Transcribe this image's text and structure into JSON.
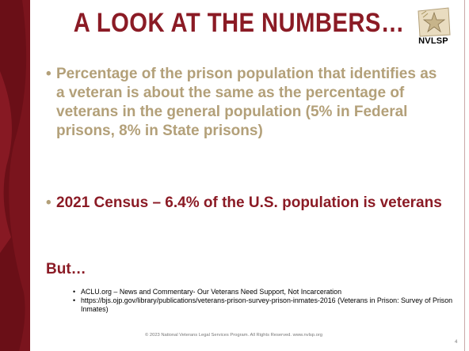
{
  "slide": {
    "title": "A LOOK AT THE NUMBERS…",
    "logo_text": "NVLSP",
    "bullets": [
      {
        "text": "Percentage of the prison population that identifies as a veteran is about the same as the percentage of veterans in the general population (5% in Federal prisons, 8% in State prisons)"
      },
      {
        "text": "2021 Census – 6.4% of the U.S. population is veterans"
      }
    ],
    "bullet_glyph": "•",
    "but_heading": "But…",
    "references": [
      {
        "text": "ACLU.org – News and Commentary- Our Veterans Need Support, Not Incarceration"
      },
      {
        "text": "https://bjs.ojp.gov/library/publications/veterans-prison-survey-prison-inmates-2016 (Veterans in Prison: Survey of Prison Inmates)"
      }
    ],
    "footer": "© 2023 National Veterans Legal Services Program. All Rights Reserved. www.nvlsp.org",
    "page_number": "4"
  },
  "colors": {
    "maroon": "#8b1b25",
    "tan": "#b3a079",
    "band_dark": "#6e1119"
  }
}
